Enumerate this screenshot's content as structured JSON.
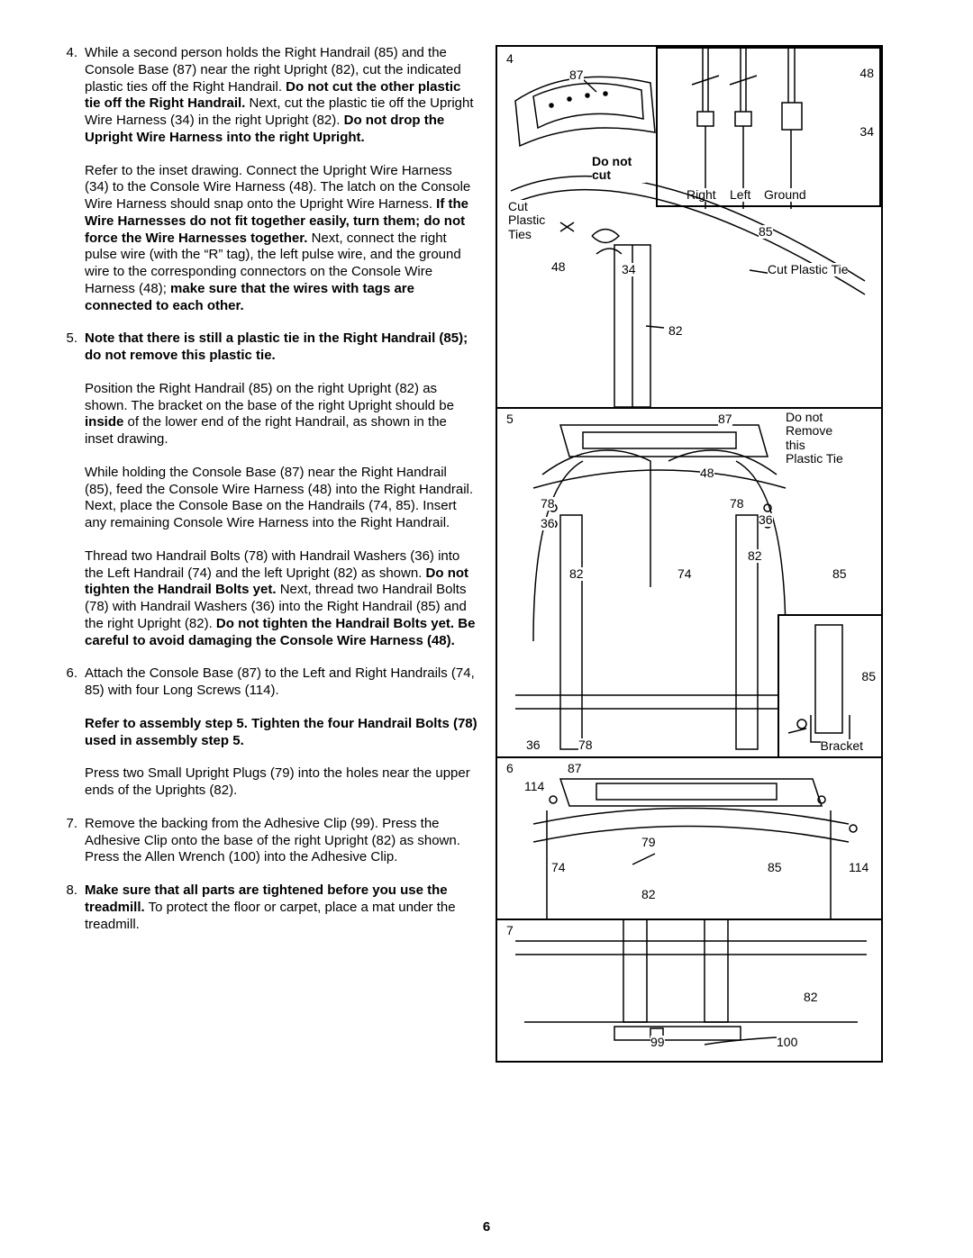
{
  "page_number": "6",
  "steps": [
    {
      "n": "4.",
      "paras": [
        "While a second person holds the Right Handrail (85) and the Console Base (87) near the right Upright (82), cut the indicated plastic ties off the Right Handrail. <b>Do not cut the other plastic tie off the Right Handrail.</b> Next, cut the plastic tie off the Upright Wire Harness (34) in the right Upright (82). <b>Do not drop the Upright Wire Harness into the right Upright.</b>",
        "Refer to the inset drawing. Connect the Upright Wire Harness (34) to the Console Wire Harness (48). The latch on the Console Wire Harness should snap onto the Upright Wire Harness. <b>If the Wire Harnesses do not fit together easily, turn them; do not force the Wire Harnesses together.</b> Next, connect the right pulse wire (with the “R” tag), the left pulse wire, and the ground wire to the corresponding connectors on the Console Wire Harness (48); <b>make sure that the wires with tags are connected to each other.</b>"
      ]
    },
    {
      "n": "5.",
      "paras": [
        "<b>Note that there is still a plastic tie in the Right Handrail (85); do not remove this plastic tie.</b>",
        "Position the Right Handrail (85) on the right Upright (82) as shown. The bracket on the base of the right Upright should be <b>inside</b> of the lower end of the right Handrail, as shown in the inset drawing.",
        "While holding the Console Base (87) near the Right Handrail (85), feed the Console Wire Harness (48) into the Right Handrail. Next, place the Console Base on the Handrails (74, 85). Insert any remaining Console Wire Harness into the Right Handrail.",
        "Thread two Handrail Bolts (78) with Handrail Washers (36) into the Left Handrail (74) and the left Upright (82) as shown. <b>Do not tighten the Handrail Bolts yet.</b> Next, thread two Handrail Bolts (78) with Handrail Washers (36) into the Right Handrail (85) and the right Upright (82). <b>Do not tighten the Handrail Bolts yet. Be careful to avoid damaging the Console Wire Harness (48).</b>"
      ]
    },
    {
      "n": "6.",
      "paras": [
        "Attach the Console Base (87) to the Left and Right Handrails (74, 85) with four Long Screws (114).",
        "<b>Refer to assembly step 5. Tighten the four Handrail Bolts (78) used in assembly step 5.</b>",
        "Press two Small Upright Plugs (79) into the holes near the upper ends of the Uprights (82)."
      ]
    },
    {
      "n": "7.",
      "paras": [
        "Remove the backing from the Adhesive Clip (99). Press the Adhesive Clip onto the base of the right Upright (82) as shown. Press the Allen Wrench (100) into the Adhesive Clip."
      ]
    },
    {
      "n": "8.",
      "paras": [
        "<b>Make sure that all parts are tightened before you use the treadmill.</b> To protect the floor or carpet, place a mat under the treadmill."
      ]
    }
  ],
  "diagram": {
    "panel4": {
      "step": "4",
      "labels": {
        "l87": "87",
        "l48a": "48",
        "l34a": "34",
        "donotcut": "Do not cut",
        "right": "Right",
        "left": "Left",
        "ground": "Ground",
        "cutties": "Cut Plastic Ties",
        "l85": "85",
        "l48b": "48",
        "l34b": "34",
        "cuttie": "Cut Plastic Tie",
        "l82": "82"
      }
    },
    "panel5": {
      "step": "5",
      "labels": {
        "l87": "87",
        "donotremove": "Do not Remove this Plastic Tie",
        "l48": "48",
        "l78a": "78",
        "l78b": "78",
        "l36a": "36",
        "l36b": "36",
        "l82a": "82",
        "l82b": "82",
        "l74": "74",
        "l85a": "85",
        "l85b": "85",
        "l36c": "36",
        "l78c": "78",
        "bracket": "Bracket"
      }
    },
    "panel6": {
      "step": "6",
      "labels": {
        "l87": "87",
        "l114a": "114",
        "l114b": "114",
        "l79": "79",
        "l74": "74",
        "l85": "85",
        "l82": "82"
      }
    },
    "panel7": {
      "step": "7",
      "labels": {
        "l82": "82",
        "l99": "99",
        "l100": "100"
      }
    }
  }
}
